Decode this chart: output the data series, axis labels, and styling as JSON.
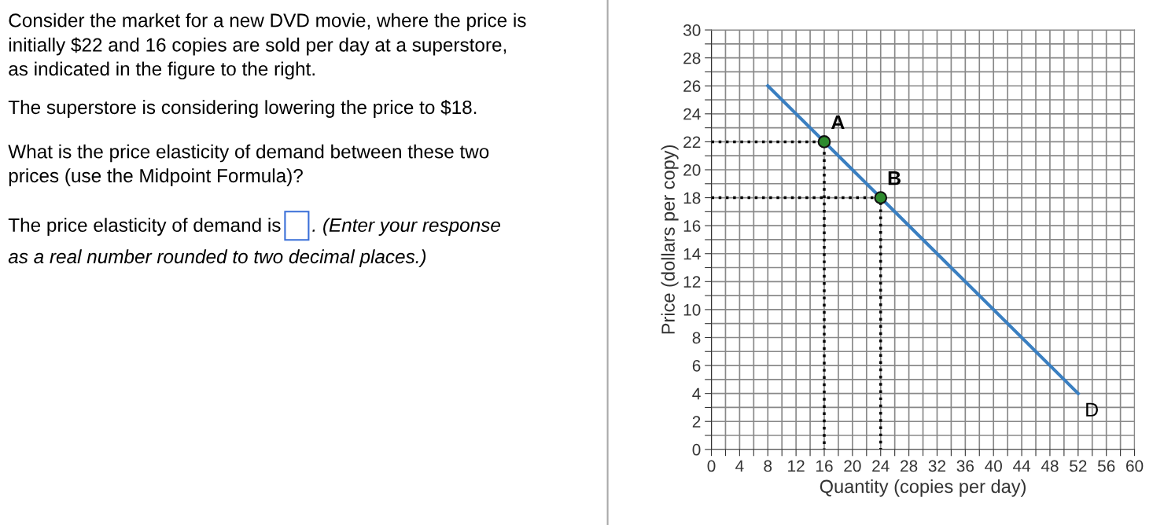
{
  "chart_data": {
    "type": "line",
    "xlabel": "Quantity (copies per day)",
    "ylabel": "Price (dollars per copy)",
    "series": [
      {
        "color": "#3a7fc1",
        "x": [
          8,
          52
        ],
        "values": [
          26,
          4
        ],
        "marker": "none",
        "line_style": "solid"
      },
      {
        "color": "#000000",
        "x": [
          0,
          16,
          16
        ],
        "values": [
          22,
          22,
          0
        ],
        "marker": "none",
        "line_style": "dotted"
      },
      {
        "color": "#000000",
        "x": [
          0,
          24,
          24
        ],
        "values": [
          18,
          18,
          0
        ],
        "marker": "none",
        "line_style": "dotted"
      },
      {
        "type": "scatter",
        "color": "#2e8b2e",
        "x": [
          16,
          24
        ],
        "values": [
          22,
          18
        ],
        "marker": "circle"
      }
    ],
    "xlim": [
      0,
      60
    ],
    "ylim": [
      0,
      30
    ],
    "xticks": [
      0,
      {
        "value": 2,
        "label": null
      },
      4,
      {
        "value": 6,
        "label": null
      },
      8,
      {
        "value": 10,
        "label": null
      },
      12,
      {
        "value": 14,
        "label": null
      },
      16,
      {
        "value": 18,
        "label": null
      },
      20,
      {
        "value": 22,
        "label": null
      },
      24,
      {
        "value": 26,
        "label": null
      },
      28,
      {
        "value": 30,
        "label": null
      },
      32,
      {
        "value": 34,
        "label": null
      },
      36,
      {
        "value": 38,
        "label": null
      },
      40,
      {
        "value": 42,
        "label": null
      },
      44,
      {
        "value": 46,
        "label": null
      },
      48,
      {
        "value": 50,
        "label": null
      },
      52,
      {
        "value": 54,
        "label": null
      },
      56,
      {
        "value": 58,
        "label": null
      },
      60
    ],
    "yticks": [
      0,
      {
        "value": 1,
        "label": null
      },
      2,
      {
        "value": 3,
        "label": null
      },
      4,
      {
        "value": 5,
        "label": null
      },
      6,
      {
        "value": 7,
        "label": null
      },
      8,
      {
        "value": 9,
        "label": null
      },
      10,
      {
        "value": 11,
        "label": null
      },
      12,
      {
        "value": 13,
        "label": null
      },
      14,
      {
        "value": 15,
        "label": null
      },
      16,
      {
        "value": 17,
        "label": null
      },
      18,
      {
        "value": 19,
        "label": null
      },
      20,
      {
        "value": 21,
        "label": null
      },
      22,
      {
        "value": 23,
        "label": null
      },
      24,
      {
        "value": 25,
        "label": null
      },
      26,
      {
        "value": 27,
        "label": null
      },
      28,
      {
        "value": 29,
        "label": null
      },
      30
    ],
    "grid": true,
    "legend": false,
    "annotations": [
      {
        "text": "A",
        "x": 16,
        "y": 22
      },
      {
        "text": "B",
        "x": 24,
        "y": 18
      },
      {
        "text": "D",
        "x": 52,
        "y": 4
      },
      "Consider the market for a new DVD movie, where the price is\ninitially $22 and 16 copies are sold per day at a superstore,\nas indicated in the figure to the right.",
      "The superstore is considering lowering the price to $18.",
      "What is the price elasticity of demand between these two\nprices (use the Midpoint Formula)?",
      "The price elasticity of demand is",
      ". (Enter your response\nas a real number rounded to two decimal places.)"
    ]
  }
}
